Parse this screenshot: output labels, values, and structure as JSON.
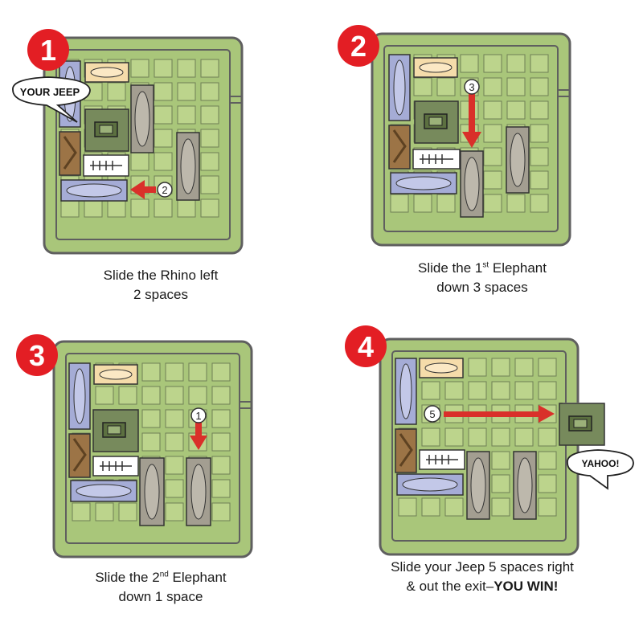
{
  "colors": {
    "board": "#a9c67a",
    "board_edge": "#5f5f5f",
    "cell": "#bcd48c",
    "badge": "#e31e24",
    "arrow": "#d9302a",
    "rhino": "#a5acd6",
    "lion": "#f5dcaa",
    "giraffe": "#9c7446",
    "zebra": "#ffffff",
    "elephant": "#a39e91",
    "jeep": "#778a5c"
  },
  "steps": [
    {
      "number": "1",
      "bubble": "YOUR JEEP",
      "move_count": "2",
      "caption": {
        "line1": "Slide the Rhino left",
        "line2": "2 spaces"
      }
    },
    {
      "number": "2",
      "move_count": "3",
      "caption": {
        "pre": "Slide the 1",
        "sup": "st",
        "post": " Elephant",
        "line2": "down 3 spaces"
      }
    },
    {
      "number": "3",
      "move_count": "1",
      "caption": {
        "pre": "Slide the 2",
        "sup": "nd",
        "post": " Elephant",
        "line2": "down 1 space"
      }
    },
    {
      "number": "4",
      "bubble": "YAHOO!",
      "move_count": "5",
      "caption": {
        "line1": "Slide your Jeep 5 spaces right",
        "line2a": "& out the exit–",
        "line2b": "YOU WIN!"
      }
    }
  ]
}
